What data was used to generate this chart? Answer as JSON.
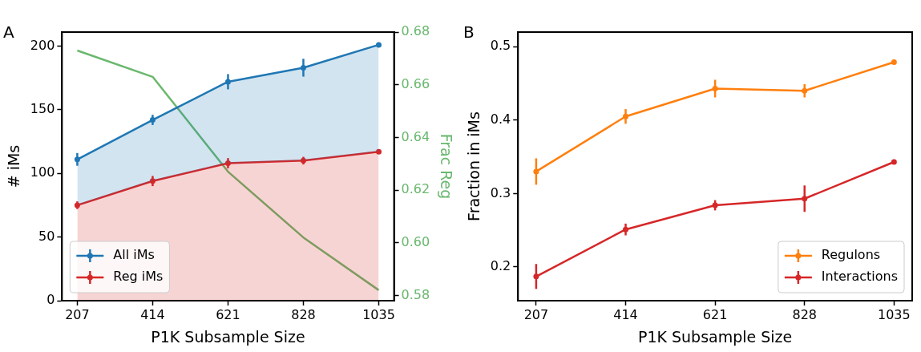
{
  "chart_data": [
    {
      "type": "line",
      "title": "A",
      "xlabel": "P1K Subsample Size",
      "ylabel": "# iMs",
      "y2label": "Frac Reg",
      "x": [
        207,
        414,
        621,
        828,
        1035
      ],
      "xlim": [
        165,
        1077
      ],
      "xticks": [
        207,
        414,
        621,
        828,
        1035
      ],
      "ylim": [
        0,
        211
      ],
      "yticks": [
        0,
        50,
        100,
        150,
        200
      ],
      "y2lim": [
        0.578,
        0.68
      ],
      "y2ticks": [
        0.58,
        {
          "value": 0.6,
          "label": "0.60"
        },
        0.62,
        0.64,
        0.66,
        0.68
      ],
      "grid": false,
      "legend": "bottom left",
      "marker": "circle",
      "series": [
        {
          "name": "All iMs",
          "type": "area",
          "color": "#1f77b4",
          "values": [
            111,
            142,
            172,
            183,
            201
          ],
          "errors": [
            5,
            4,
            6,
            7,
            null
          ]
        },
        {
          "name": "Reg iMs",
          "type": "area",
          "color": "#d62728",
          "values": [
            75,
            94,
            108,
            110,
            117
          ],
          "errors": [
            3,
            4,
            4,
            3,
            null
          ]
        },
        {
          "axis": "y2",
          "marker": "none",
          "color": "#6ab86f",
          "values": [
            0.673,
            0.663,
            0.627,
            0.602,
            0.582
          ]
        }
      ]
    },
    {
      "type": "line",
      "title": "B",
      "xlabel": "P1K Subsample Size",
      "ylabel": "Fraction in iMs",
      "x": [
        207,
        414,
        621,
        828,
        1035
      ],
      "xlim": [
        165,
        1077
      ],
      "xticks": [
        207,
        414,
        621,
        828,
        1035
      ],
      "ylim": [
        0.154,
        0.52
      ],
      "yticks": [
        0.2,
        0.3,
        0.4,
        0.5
      ],
      "grid": false,
      "legend": "bottom right",
      "marker": "circle",
      "series": [
        {
          "name": "Regulons",
          "color": "#ff7f0e",
          "values": [
            0.33,
            0.405,
            0.443,
            0.44,
            0.479
          ],
          "errors": [
            0.018,
            0.01,
            0.012,
            0.009,
            null
          ]
        },
        {
          "name": "Interactions",
          "color": "#d62728",
          "values": [
            0.187,
            0.251,
            0.284,
            0.293,
            0.343
          ],
          "errors": [
            0.017,
            0.008,
            0.007,
            0.018,
            null
          ]
        }
      ]
    }
  ]
}
